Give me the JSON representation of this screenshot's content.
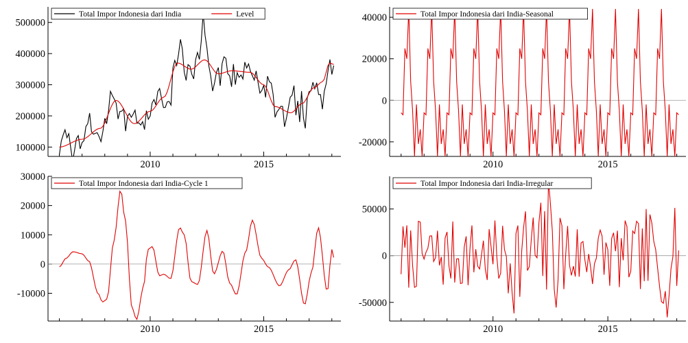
{
  "chart_data": [
    {
      "type": "line",
      "xlim": [
        2005.5,
        2018.4
      ],
      "ylim": [
        70000,
        550000
      ],
      "grid": false,
      "legend_placement": "top-left",
      "xticks": [
        2010,
        2015
      ],
      "xtick_labels": [
        "2010",
        "2015"
      ],
      "yticks": [
        100000,
        200000,
        300000,
        400000,
        500000
      ],
      "ytick_labels": [
        "100000",
        "200000",
        "300000",
        "400000",
        "500000"
      ],
      "reference_line": null,
      "series": [
        {
          "name": "Total Impor Indonesia dari India",
          "color": "#000000",
          "style": "actual"
        },
        {
          "name": "Level",
          "color": "#e00000",
          "style": "level"
        }
      ]
    },
    {
      "type": "line",
      "xlim": [
        2005.5,
        2018.4
      ],
      "ylim": [
        -27000,
        45000
      ],
      "grid": false,
      "legend_placement": "top-left",
      "xticks": [
        2010,
        2015
      ],
      "xtick_labels": [
        "2010",
        "2015"
      ],
      "yticks": [
        -20000,
        0,
        20000,
        40000
      ],
      "ytick_labels": [
        "-20000",
        "0",
        "20000",
        "40000"
      ],
      "reference_line": 0,
      "series": [
        {
          "name": "Total Impor Indonesia dari India-Seasonal",
          "color": "#e00000",
          "style": "seasonal"
        }
      ]
    },
    {
      "type": "line",
      "xlim": [
        2005.5,
        2018.4
      ],
      "ylim": [
        -19500,
        30000
      ],
      "grid": false,
      "legend_placement": "top-left",
      "xticks": [
        2010,
        2015
      ],
      "xtick_labels": [
        "2010",
        "2015"
      ],
      "yticks": [
        -10000,
        0,
        10000,
        20000,
        30000
      ],
      "ytick_labels": [
        "-10000",
        "0",
        "10000",
        "20000",
        "30000"
      ],
      "reference_line": 0,
      "series": [
        {
          "name": "Total Impor Indonesia dari India-Cycle 1",
          "color": "#e00000",
          "style": "cycle"
        }
      ]
    },
    {
      "type": "line",
      "xlim": [
        2005.5,
        2018.4
      ],
      "ylim": [
        -70000,
        85000
      ],
      "grid": false,
      "legend_placement": "top-left",
      "xticks": [
        2010,
        2015
      ],
      "xtick_labels": [
        "2010",
        "2015"
      ],
      "yticks": [
        -50000,
        0,
        50000
      ],
      "ytick_labels": [
        "-50000",
        "0",
        "50000"
      ],
      "reference_line": 0,
      "series": [
        {
          "name": "Total Impor Indonesia dari India-Irregular",
          "color": "#e00000",
          "style": "irregular"
        }
      ]
    }
  ]
}
